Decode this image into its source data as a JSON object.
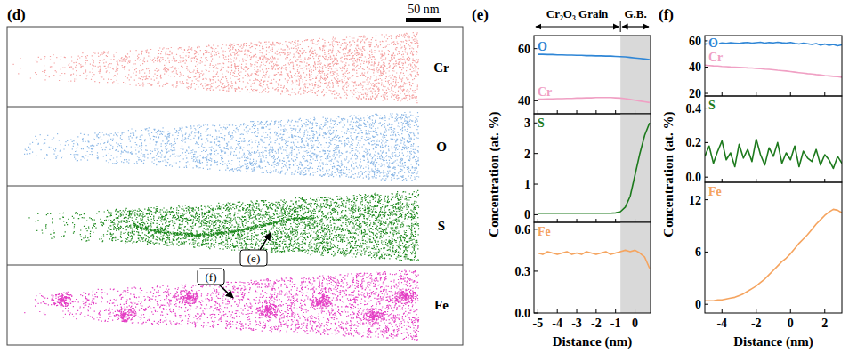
{
  "panel_d": {
    "title": "(d)",
    "scale_bar": "50 nm",
    "maps": [
      "Cr",
      "O",
      "S",
      "Fe"
    ],
    "colors": [
      "#f4a0a0",
      "#8cb8e6",
      "#1f8a1f",
      "#e43fc4"
    ],
    "callouts": [
      "(e)",
      "(f)"
    ]
  },
  "chart_data": [
    {
      "type": "line",
      "title": "(e)",
      "annotations": [
        "Cr₂O₃ Grain",
        "G.B."
      ],
      "x": [
        -5,
        -4.75,
        -4.5,
        -4.25,
        -4,
        -3.75,
        -3.5,
        -3.25,
        -3,
        -2.75,
        -2.5,
        -2.25,
        -2,
        -1.75,
        -1.5,
        -1.25,
        -1,
        -0.75,
        -0.5,
        -0.25,
        0,
        0.25,
        0.5,
        0.75
      ],
      "series": [
        {
          "name": "O",
          "color": "#2f86d6",
          "values": [
            57.8,
            57.8,
            57.7,
            57.7,
            57.6,
            57.6,
            57.5,
            57.5,
            57.4,
            57.4,
            57.3,
            57.3,
            57.2,
            57.2,
            57.1,
            57.1,
            57.0,
            56.9,
            56.8,
            56.6,
            56.4,
            56.2,
            56.0,
            55.8
          ]
        },
        {
          "name": "Cr",
          "color": "#f0a0c4",
          "values": [
            40.6,
            40.6,
            40.7,
            40.7,
            40.8,
            40.8,
            40.9,
            40.9,
            41.0,
            41.0,
            41.1,
            41.1,
            41.2,
            41.2,
            41.2,
            41.2,
            41.1,
            41.0,
            40.8,
            40.5,
            40.2,
            39.9,
            39.6,
            39.3
          ]
        }
      ],
      "xlim": [
        -5.2,
        0.8
      ],
      "xticks": [
        -5,
        -4,
        -3,
        -2,
        -1,
        0
      ],
      "ylim": [
        35,
        65
      ],
      "yticks": [
        40,
        60
      ],
      "highlight_x": [
        -0.75,
        0.8
      ],
      "tick_labels": "y"
    },
    {
      "type": "line",
      "ylabel": "Concentration (at. %)",
      "x": [
        -5,
        -4.75,
        -4.5,
        -4.25,
        -4,
        -3.75,
        -3.5,
        -3.25,
        -3,
        -2.75,
        -2.5,
        -2.25,
        -2,
        -1.75,
        -1.5,
        -1.25,
        -1,
        -0.75,
        -0.5,
        -0.25,
        0,
        0.25,
        0.5,
        0.75
      ],
      "series": [
        {
          "name": "S",
          "color": "#1d7a1d",
          "values": [
            0.05,
            0.05,
            0.05,
            0.05,
            0.05,
            0.05,
            0.05,
            0.05,
            0.05,
            0.05,
            0.05,
            0.05,
            0.05,
            0.05,
            0.05,
            0.05,
            0.06,
            0.1,
            0.25,
            0.6,
            1.3,
            2.0,
            2.6,
            3.0
          ]
        }
      ],
      "xlim": [
        -5.2,
        0.8
      ],
      "xticks": [
        -5,
        -4,
        -3,
        -2,
        -1,
        0
      ],
      "ylim": [
        -0.25,
        3.3
      ],
      "yticks": [
        0,
        1,
        2,
        3
      ],
      "highlight_x": [
        -0.75,
        0.8
      ],
      "tick_labels": "y"
    },
    {
      "type": "line",
      "xlabel": "Distance (nm)",
      "x": [
        -5,
        -4.75,
        -4.5,
        -4.25,
        -4,
        -3.75,
        -3.5,
        -3.25,
        -3,
        -2.75,
        -2.5,
        -2.25,
        -2,
        -1.75,
        -1.5,
        -1.25,
        -1,
        -0.75,
        -0.5,
        -0.25,
        0,
        0.25,
        0.5,
        0.75
      ],
      "series": [
        {
          "name": "Fe",
          "color": "#f5a45f",
          "values": [
            0.43,
            0.42,
            0.44,
            0.43,
            0.42,
            0.43,
            0.44,
            0.42,
            0.43,
            0.42,
            0.44,
            0.43,
            0.42,
            0.43,
            0.44,
            0.42,
            0.43,
            0.44,
            0.45,
            0.44,
            0.45,
            0.43,
            0.4,
            0.32
          ]
        }
      ],
      "xlim": [
        -5.2,
        0.8
      ],
      "xticks": [
        -5,
        -4,
        -3,
        -2,
        -1,
        0
      ],
      "ylim": [
        0,
        0.65
      ],
      "yticks": [
        {
          "value": 0,
          "label": "0.0"
        },
        0.3,
        0.6
      ],
      "highlight_x": [
        -0.75,
        0.8
      ]
    },
    {
      "type": "line",
      "title": "(f)",
      "x": [
        -5,
        -4.75,
        -4.5,
        -4.25,
        -4,
        -3.75,
        -3.5,
        -3.25,
        -3,
        -2.75,
        -2.5,
        -2.25,
        -2,
        -1.75,
        -1.5,
        -1.25,
        -1,
        -0.75,
        -0.5,
        -0.25,
        0,
        0.25,
        0.5,
        0.75,
        1,
        1.25,
        1.5,
        1.75,
        2,
        2.25,
        2.5,
        2.75,
        3
      ],
      "series": [
        {
          "name": "O",
          "color": "#2f86d6",
          "values": [
            57.5,
            57.9,
            58.2,
            57.8,
            58.4,
            58.1,
            58.6,
            58.3,
            58.0,
            58.5,
            58.8,
            58.2,
            58.6,
            58.9,
            58.3,
            58.7,
            58.4,
            58.9,
            58.5,
            58.2,
            58.7,
            58.1,
            57.6,
            58.3,
            57.8,
            57.2,
            57.9,
            56.8,
            57.5,
            56.5,
            57.3,
            56.2,
            56.9
          ]
        },
        {
          "name": "Cr",
          "color": "#f0a0c4",
          "values": [
            41.5,
            41.2,
            40.9,
            40.8,
            40.5,
            40.3,
            40.1,
            40.0,
            39.8,
            39.6,
            39.4,
            39.3,
            39.0,
            38.8,
            38.5,
            38.3,
            38.0,
            37.6,
            37.3,
            37.0,
            36.6,
            36.2,
            35.8,
            35.4,
            35.0,
            34.7,
            34.3,
            34.0,
            33.6,
            33.3,
            33.0,
            32.7,
            32.3
          ]
        }
      ],
      "xlim": [
        -5,
        3
      ],
      "xticks": [
        -4,
        -2,
        0,
        2
      ],
      "ylim": [
        18,
        64
      ],
      "yticks": [
        20,
        40,
        60
      ],
      "tick_labels": "y"
    },
    {
      "type": "line",
      "ylabel": "Concentration (at. %)",
      "x": [
        -5,
        -4.75,
        -4.5,
        -4.25,
        -4,
        -3.75,
        -3.5,
        -3.25,
        -3,
        -2.75,
        -2.5,
        -2.25,
        -2,
        -1.75,
        -1.5,
        -1.25,
        -1,
        -0.75,
        -0.5,
        -0.25,
        0,
        0.25,
        0.5,
        0.75,
        1,
        1.25,
        1.5,
        1.75,
        2,
        2.25,
        2.5,
        2.75,
        3
      ],
      "series": [
        {
          "name": "S",
          "color": "#1d7a1d",
          "values": [
            0.12,
            0.18,
            0.08,
            0.15,
            0.21,
            0.1,
            0.14,
            0.06,
            0.19,
            0.11,
            0.16,
            0.09,
            0.22,
            0.13,
            0.07,
            0.17,
            0.12,
            0.2,
            0.08,
            0.14,
            0.1,
            0.18,
            0.06,
            0.15,
            0.11,
            0.09,
            0.16,
            0.07,
            0.13,
            0.1,
            0.05,
            0.12,
            0.08
          ]
        }
      ],
      "xlim": [
        -5,
        3
      ],
      "xticks": [
        -4,
        -2,
        0,
        2
      ],
      "ylim": [
        -0.03,
        0.47
      ],
      "yticks": [
        {
          "value": 0,
          "label": "0.0"
        },
        0.2,
        0.4
      ],
      "tick_labels": "y"
    },
    {
      "type": "line",
      "xlabel": "Distance (nm)",
      "x": [
        -5,
        -4.75,
        -4.5,
        -4.25,
        -4,
        -3.75,
        -3.5,
        -3.25,
        -3,
        -2.75,
        -2.5,
        -2.25,
        -2,
        -1.75,
        -1.5,
        -1.25,
        -1,
        -0.75,
        -0.5,
        -0.25,
        0,
        0.25,
        0.5,
        0.75,
        1,
        1.25,
        1.5,
        1.75,
        2,
        2.25,
        2.5,
        2.75,
        3
      ],
      "series": [
        {
          "name": "Fe",
          "color": "#f5a45f",
          "values": [
            0.4,
            0.4,
            0.4,
            0.5,
            0.5,
            0.6,
            0.7,
            0.8,
            1.0,
            1.2,
            1.5,
            1.8,
            2.1,
            2.5,
            2.9,
            3.4,
            3.9,
            4.4,
            4.9,
            5.3,
            5.8,
            6.4,
            7.0,
            7.5,
            8.0,
            8.6,
            9.2,
            9.7,
            10.2,
            10.6,
            10.9,
            10.8,
            10.5
          ]
        }
      ],
      "xlim": [
        -5,
        3
      ],
      "xticks": [
        -4,
        -2,
        0,
        2
      ],
      "ylim": [
        -1,
        14
      ],
      "yticks": [
        0,
        6,
        12
      ]
    }
  ]
}
